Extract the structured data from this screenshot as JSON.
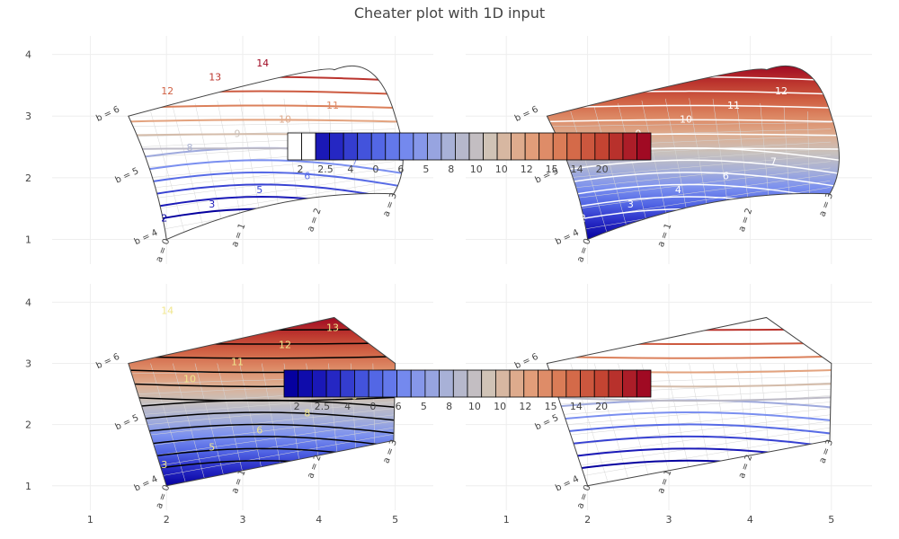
{
  "chart_data": {
    "type": "contour",
    "title": "Cheater plot with 1D input",
    "colorscale": [
      "#05009f",
      "#2222c0",
      "#4b5fe3",
      "#7a8ff0",
      "#aab2d6",
      "#cfc4b8",
      "#e3a37f",
      "#d8744f",
      "#c24030",
      "#a00a23"
    ],
    "colorscale_name": "RdBu (reversed, blue-white-red)",
    "carpet": {
      "a_values": [
        0,
        1,
        2,
        3
      ],
      "b_values": [
        4,
        5,
        6
      ],
      "a_labels": [
        "a = 0",
        "a = 1",
        "a = 2",
        "a = 3"
      ],
      "b_labels": [
        "b = 4",
        "b = 5",
        "b = 6"
      ]
    },
    "contour_levels": [
      2,
      3,
      4,
      5,
      6,
      7,
      8,
      9,
      10,
      11,
      12,
      13,
      14
    ],
    "panels": [
      {
        "name": "top-left",
        "coloring": "lines",
        "smoothing": "curved",
        "xaxis": {
          "ticks": [],
          "range": [
            0.5,
            5.5
          ]
        },
        "yaxis": {
          "ticks": [
            "1",
            "2",
            "3",
            "4"
          ],
          "range": [
            0.6,
            4.3
          ]
        },
        "contour_labels": [
          "2",
          "3",
          "5",
          "6",
          "7",
          "8",
          "9",
          "10",
          "11",
          "12",
          "13",
          "14"
        ]
      },
      {
        "name": "top-right",
        "coloring": "fill",
        "smoothing": "curved",
        "xaxis": {
          "ticks": [],
          "range": [
            0.5,
            5.5
          ]
        },
        "yaxis": {
          "ticks": [],
          "range": [
            0.6,
            4.3
          ]
        },
        "contour_labels": [
          "2",
          "3",
          "4",
          "6",
          "7",
          "8",
          "9",
          "10",
          "11",
          "12",
          "13",
          "14"
        ]
      },
      {
        "name": "bottom-left",
        "coloring": "heatmap",
        "smoothing": "linear",
        "xaxis": {
          "ticks": [
            "1",
            "2",
            "3",
            "4",
            "5"
          ],
          "range": [
            0.5,
            5.5
          ]
        },
        "yaxis": {
          "ticks": [
            "1",
            "2",
            "3",
            "4"
          ],
          "range": [
            0.6,
            4.3
          ]
        },
        "contour_labels": [
          "3",
          "5",
          "6",
          "8",
          "9",
          "10",
          "11",
          "12",
          "13",
          "14"
        ]
      },
      {
        "name": "bottom-right",
        "coloring": "lines",
        "smoothing": "linear",
        "xaxis": {
          "ticks": [
            "1",
            "2",
            "3",
            "4",
            "5"
          ],
          "range": [
            0.5,
            5.5
          ]
        },
        "yaxis": {
          "ticks": [],
          "range": [
            0.6,
            4.3
          ]
        },
        "contour_labels": []
      }
    ],
    "colorbars": [
      {
        "name": "colorbar-top",
        "tick_labels": [
          "2",
          "2.5",
          "4",
          "0",
          "6",
          "5",
          "8",
          "10",
          "10",
          "12",
          "15",
          "14",
          "20"
        ]
      },
      {
        "name": "colorbar-bottom",
        "tick_labels": [
          "2",
          "2.5",
          "4",
          "0",
          "6",
          "5",
          "8",
          "10",
          "10",
          "12",
          "15",
          "14",
          "20"
        ]
      }
    ]
  }
}
